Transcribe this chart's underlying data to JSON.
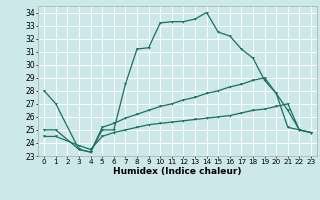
{
  "xlabel": "Humidex (Indice chaleur)",
  "bg_color": "#cce8e8",
  "grid_color": "#ffffff",
  "line_color": "#1a7060",
  "xlim": [
    0,
    23
  ],
  "ylim": [
    23,
    34.5
  ],
  "xticks": [
    0,
    1,
    2,
    3,
    4,
    5,
    6,
    7,
    8,
    9,
    10,
    11,
    12,
    13,
    14,
    15,
    16,
    17,
    18,
    19,
    20,
    21,
    22,
    23
  ],
  "yticks": [
    23,
    24,
    25,
    26,
    27,
    28,
    29,
    30,
    31,
    32,
    33,
    34
  ],
  "series1_x": [
    0,
    1,
    3,
    4,
    5,
    6,
    7,
    8,
    9,
    10,
    11,
    12,
    13,
    14,
    15,
    16,
    17,
    18,
    19,
    20,
    21,
    22,
    23
  ],
  "series1_y": [
    28,
    27,
    23.5,
    23.3,
    25.0,
    25.0,
    28.5,
    31.2,
    31.3,
    33.2,
    33.3,
    33.3,
    33.5,
    34.0,
    32.5,
    32.2,
    31.2,
    30.5,
    28.8,
    27.8,
    26.5,
    25.0,
    24.8
  ],
  "series2_x": [
    0,
    1,
    3,
    4,
    5,
    6,
    7,
    8,
    9,
    10,
    11,
    12,
    13,
    14,
    15,
    16,
    17,
    18,
    19,
    20,
    21,
    22,
    23
  ],
  "series2_y": [
    25.0,
    25.0,
    23.5,
    23.3,
    25.2,
    25.5,
    25.9,
    26.2,
    26.5,
    26.8,
    27.0,
    27.3,
    27.5,
    27.8,
    28.0,
    28.3,
    28.5,
    28.8,
    29.0,
    27.8,
    25.2,
    25.0,
    24.8
  ],
  "series3_x": [
    0,
    1,
    3,
    4,
    5,
    6,
    7,
    8,
    9,
    10,
    11,
    12,
    13,
    14,
    15,
    16,
    17,
    18,
    19,
    20,
    21,
    22,
    23
  ],
  "series3_y": [
    24.5,
    24.5,
    23.8,
    23.5,
    24.5,
    24.8,
    25.0,
    25.2,
    25.4,
    25.5,
    25.6,
    25.7,
    25.8,
    25.9,
    26.0,
    26.1,
    26.3,
    26.5,
    26.6,
    26.8,
    27.0,
    25.0,
    24.8
  ]
}
